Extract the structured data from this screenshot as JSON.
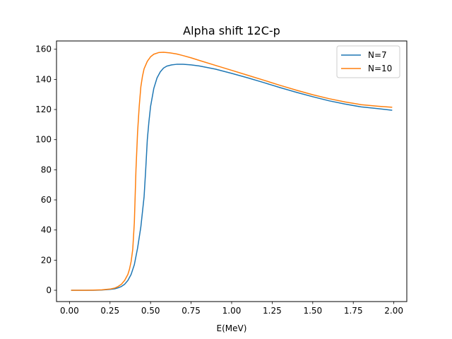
{
  "chart_data": {
    "type": "line",
    "title": "Alpha shift 12C-p",
    "xlabel": "E(MeV)",
    "ylabel": "",
    "xlim": [
      -0.08,
      2.08
    ],
    "ylim": [
      -7.5,
      165.5
    ],
    "xticks": [
      0.0,
      0.25,
      0.5,
      0.75,
      1.0,
      1.25,
      1.5,
      1.75,
      2.0
    ],
    "xtick_labels": [
      "0.00",
      "0.25",
      "0.50",
      "0.75",
      "1.00",
      "1.25",
      "1.50",
      "1.75",
      "2.00"
    ],
    "yticks": [
      0,
      20,
      40,
      60,
      80,
      100,
      120,
      140,
      160
    ],
    "ytick_labels": [
      "0",
      "20",
      "40",
      "60",
      "80",
      "100",
      "120",
      "140",
      "160"
    ],
    "grid": false,
    "legend_position": "top-right",
    "series": [
      {
        "name": "N=7",
        "color": "#1f77b4",
        "x": [
          0.01,
          0.05,
          0.1,
          0.15,
          0.2,
          0.25,
          0.28,
          0.3,
          0.32,
          0.34,
          0.36,
          0.38,
          0.4,
          0.42,
          0.44,
          0.46,
          0.47,
          0.48,
          0.49,
          0.5,
          0.52,
          0.54,
          0.56,
          0.58,
          0.6,
          0.63,
          0.66,
          0.7,
          0.75,
          0.8,
          0.9,
          1.0,
          1.1,
          1.2,
          1.3,
          1.4,
          1.5,
          1.6,
          1.7,
          1.8,
          1.9,
          1.99
        ],
        "y": [
          0,
          0,
          0,
          0,
          0.2,
          0.6,
          1.0,
          1.6,
          2.5,
          4,
          6.5,
          10.5,
          17,
          28,
          42,
          62,
          80,
          100,
          112,
          122,
          134,
          141,
          145,
          147.5,
          148.8,
          149.6,
          150,
          150,
          149.6,
          148.9,
          146.8,
          144,
          141,
          137.8,
          134.5,
          131.4,
          128.5,
          125.8,
          123.6,
          121.7,
          120.6,
          119.5
        ]
      },
      {
        "name": "N=10",
        "color": "#ff7f0e",
        "x": [
          0.01,
          0.05,
          0.1,
          0.15,
          0.2,
          0.25,
          0.28,
          0.3,
          0.32,
          0.34,
          0.36,
          0.37,
          0.38,
          0.39,
          0.4,
          0.41,
          0.42,
          0.43,
          0.44,
          0.45,
          0.46,
          0.48,
          0.5,
          0.52,
          0.55,
          0.58,
          0.62,
          0.66,
          0.7,
          0.75,
          0.8,
          0.9,
          1.0,
          1.1,
          1.2,
          1.3,
          1.4,
          1.5,
          1.6,
          1.7,
          1.8,
          1.9,
          1.99
        ],
        "y": [
          0,
          0,
          0,
          0.1,
          0.3,
          0.8,
          1.5,
          2.5,
          4,
          6.5,
          10.5,
          14,
          19,
          27,
          45,
          80,
          105,
          122,
          135,
          142,
          147,
          152,
          155,
          156.7,
          157.8,
          158,
          157.6,
          156.9,
          155.8,
          154.3,
          152.6,
          149.3,
          146,
          142.7,
          139.4,
          136,
          132.8,
          129.8,
          127.2,
          125,
          123.2,
          122.2,
          121.5
        ]
      }
    ]
  }
}
